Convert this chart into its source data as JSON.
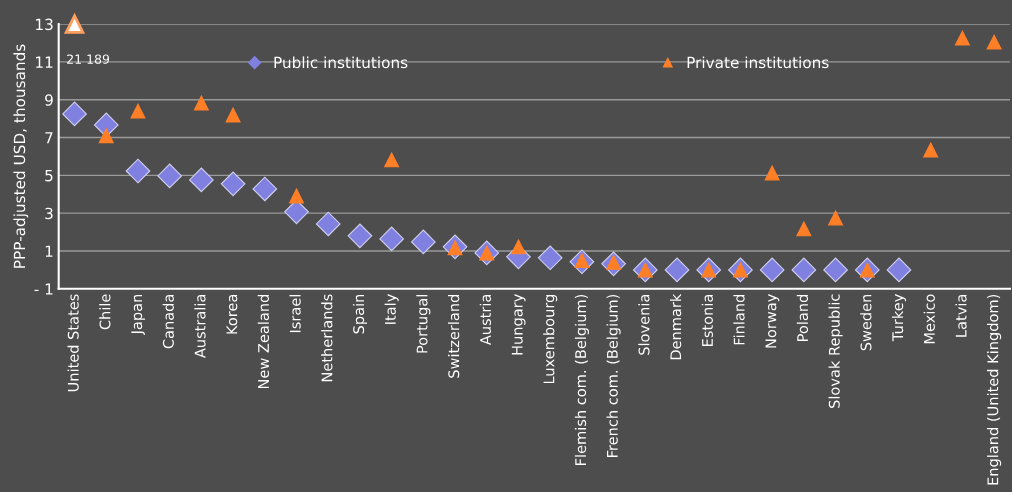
{
  "chart_data": {
    "type": "scatter",
    "ylabel": "PPP-adjusted USD, thousands",
    "categories": [
      "United States",
      "Chile",
      "Japan",
      "Canada",
      "Australia",
      "Korea",
      "New Zealand",
      "Israel",
      "Netherlands",
      "Spain",
      "Italy",
      "Portugal",
      "Switzerland",
      "Austria",
      "Hungary",
      "Luxembourg",
      "Flemish com. (Belgium)",
      "French com. (Belgium)",
      "Slovenia",
      "Denmark",
      "Estonia",
      "Finland",
      "Norway",
      "Poland",
      "Slovak Republic",
      "Sweden",
      "Turkey",
      "Mexico",
      "Latvia",
      "England (United Kingdom)"
    ],
    "series": [
      {
        "name": "Public institutions",
        "color": "#8080e0",
        "marker": "diamond",
        "values": [
          8.25,
          7.67,
          5.23,
          4.97,
          4.76,
          4.55,
          4.28,
          3.07,
          2.43,
          1.8,
          1.64,
          1.48,
          1.22,
          0.9,
          0.69,
          0.64,
          0.43,
          0.32,
          0.0,
          0.0,
          0.0,
          0.0,
          0.0,
          0.0,
          0.0,
          0.0,
          0.0,
          null,
          null,
          null
        ]
      },
      {
        "name": "Private institutions",
        "color": "#ff7f27",
        "marker": "triangle",
        "values": [
          null,
          7.1,
          8.4,
          null,
          8.83,
          8.19,
          null,
          3.91,
          null,
          null,
          5.82,
          null,
          1.17,
          0.9,
          1.22,
          null,
          0.5,
          0.4,
          0.0,
          null,
          0.0,
          0.0,
          5.13,
          2.17,
          2.75,
          0.0,
          null,
          6.34,
          12.26,
          12.05
        ]
      }
    ],
    "ylim": [
      -1,
      13
    ],
    "yticks": [
      {
        "value": -1,
        "label": "- 1"
      },
      1,
      3,
      5,
      7,
      9,
      11,
      13
    ],
    "grid": "y",
    "legend": "top",
    "annotations": [
      {
        "text": "21 189",
        "x": "United States",
        "y": 13
      }
    ]
  }
}
